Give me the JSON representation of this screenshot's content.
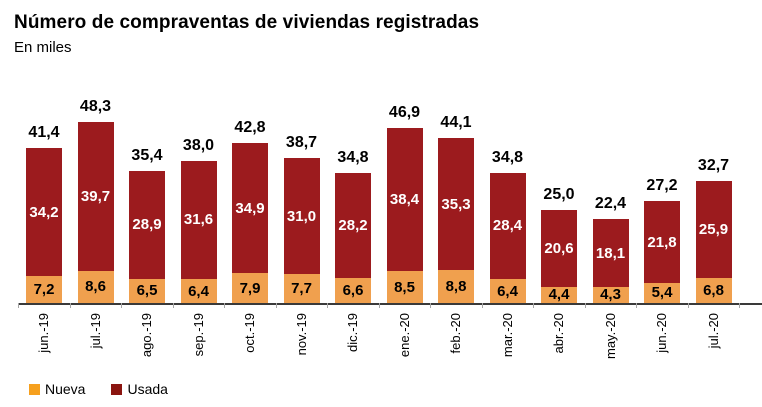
{
  "chart_data": {
    "type": "bar",
    "stacked": true,
    "title": "Número de compraventas de viviendas registradas",
    "subtitle": "En miles",
    "xlabel": "",
    "ylabel": "",
    "ylim": [
      0,
      50
    ],
    "grid": false,
    "legend_position": "bottom-left",
    "categories": [
      "jun.-19",
      "jul.-19",
      "ago.-19",
      "sep.-19",
      "oct.-19",
      "nov.-19",
      "dic.-19",
      "ene.-20",
      "feb.-20",
      "mar.-20",
      "abr.-20",
      "may.-20",
      "jun.-20",
      "jul.-20"
    ],
    "series": [
      {
        "name": "Nueva",
        "color": "#F0A04E",
        "legend_color": "#F6A01E",
        "label_color": "#000000",
        "values": [
          7.2,
          8.6,
          6.5,
          6.4,
          7.9,
          7.7,
          6.6,
          8.5,
          8.8,
          6.4,
          4.4,
          4.3,
          5.4,
          6.8
        ],
        "labels": [
          "7,2",
          "8,6",
          "6,5",
          "6,4",
          "7,9",
          "7,7",
          "6,6",
          "8,5",
          "8,8",
          "6,4",
          "4,4",
          "4,3",
          "5,4",
          "6,8"
        ]
      },
      {
        "name": "Usada",
        "color": "#9C1B1E",
        "legend_color": "#8B1510",
        "label_color": "#FFFFFF",
        "values": [
          34.2,
          39.7,
          28.9,
          31.6,
          34.9,
          31.0,
          28.2,
          38.4,
          35.3,
          28.4,
          20.6,
          18.1,
          21.8,
          25.9
        ],
        "labels": [
          "34,2",
          "39,7",
          "28,9",
          "31,6",
          "34,9",
          "31,0",
          "28,2",
          "38,4",
          "35,3",
          "28,4",
          "20,6",
          "18,1",
          "21,8",
          "25,9"
        ]
      }
    ],
    "totals": [
      41.4,
      48.3,
      35.4,
      38.0,
      42.8,
      38.7,
      34.8,
      46.9,
      44.1,
      34.8,
      25.0,
      22.4,
      27.2,
      32.7
    ],
    "total_labels": [
      "41,4",
      "48,3",
      "35,4",
      "38,0",
      "42,8",
      "38,7",
      "34,8",
      "46,9",
      "44,1",
      "34,8",
      "25,0",
      "22,4",
      "27,2",
      "32,7"
    ]
  }
}
